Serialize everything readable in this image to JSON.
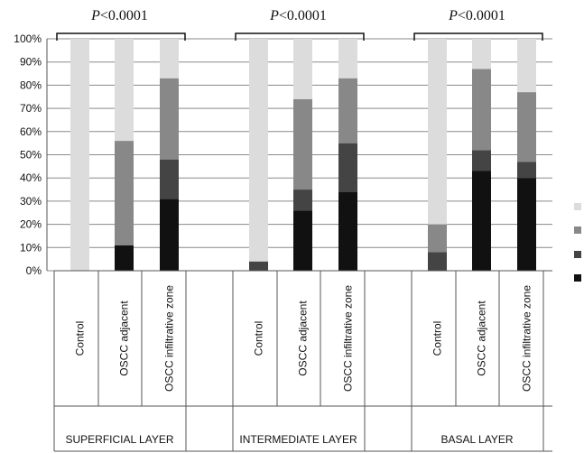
{
  "chart_data": {
    "type": "bar",
    "stacked": true,
    "orientation": "vertical",
    "y_axis": {
      "min": 0,
      "max": 100,
      "ticks": [
        "0%",
        "10%",
        "20%",
        "30%",
        "40%",
        "50%",
        "60%",
        "70%",
        "80%",
        "90%",
        "100%"
      ]
    },
    "grid": true,
    "legend_position": "right",
    "groups": [
      {
        "label": "SUPERFICIAL LAYER",
        "p_prefix": "P",
        "p_suffix": "<0.0001",
        "categories": [
          "Control",
          "OSCC adjacent",
          "OSCC infiltrative zone"
        ]
      },
      {
        "label": "INTERMEDIATE LAYER",
        "p_prefix": "P",
        "p_suffix": "<0.0001",
        "categories": [
          "Control",
          "OSCC adjacent",
          "OSCC infiltrative zone"
        ]
      },
      {
        "label": "BASAL LAYER",
        "p_prefix": "P",
        "p_suffix": "<0.0001",
        "categories": [
          "Control",
          "OSCC adjacent",
          "OSCC infiltrative zone"
        ]
      }
    ],
    "series": [
      {
        "color": "#111111",
        "values": [
          0,
          11,
          31,
          0,
          26,
          34,
          0,
          43,
          40
        ]
      },
      {
        "color": "#444444",
        "values": [
          0,
          0,
          17,
          4,
          9,
          21,
          8,
          9,
          7
        ]
      },
      {
        "color": "#888888",
        "values": [
          0,
          45,
          35,
          0,
          39,
          28,
          12,
          35,
          30
        ]
      },
      {
        "color": "#dcdcdc",
        "values": [
          100,
          44,
          17,
          96,
          26,
          17,
          80,
          13,
          23
        ]
      }
    ]
  }
}
